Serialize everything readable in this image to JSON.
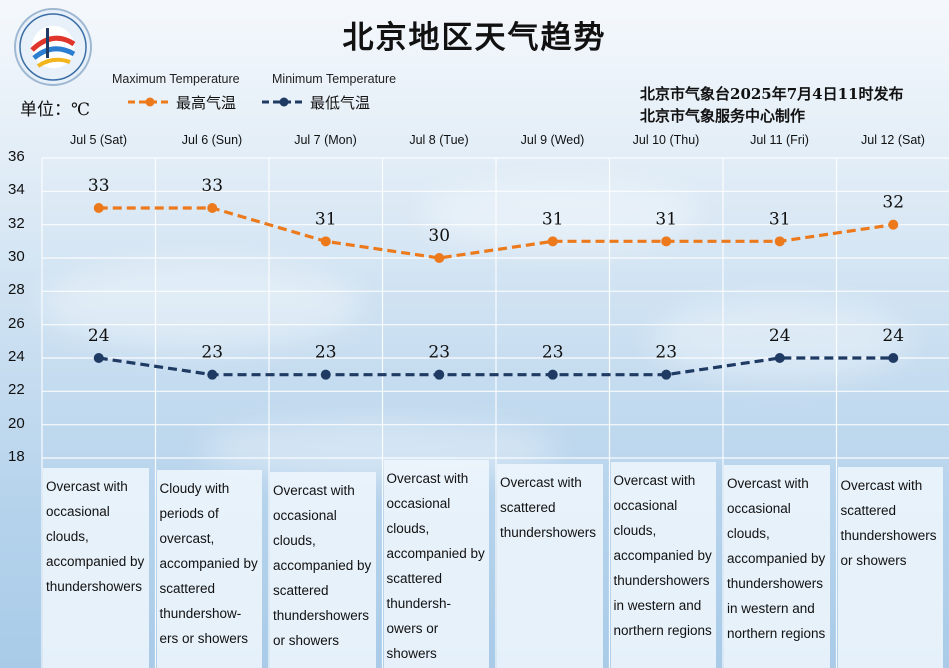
{
  "title": "北京地区天气趋势",
  "unit_label": "单位：℃",
  "legend": {
    "max_en": "Maximum  Temperature",
    "min_en": "Minimum Temperature",
    "max_cn": "最高气温",
    "min_cn": "最低气温"
  },
  "issuer": {
    "line1": "北京市气象台2025年7月4日11时发布",
    "line2": "北京市气象服务中心制作"
  },
  "colors": {
    "max_series": "#ec7a1c",
    "min_series": "#1f3b64",
    "grid": "#ffffff"
  },
  "logo_icon": "meteorological-service-logo-icon",
  "days": [
    {
      "date": "Jul 5 (Sat)",
      "desc": "Overcast with occasional clouds, accompanied by thundershowers"
    },
    {
      "date": "Jul 6 (Sun)",
      "desc": "Cloudy with periods of overcast, accompanied by scattered thundershow- ers or showers"
    },
    {
      "date": "Jul 7 (Mon)",
      "desc": "Overcast with occasional clouds, accompanied by scattered thundershowers or showers"
    },
    {
      "date": "Jul 8 (Tue)",
      "desc": "Overcast with occasional clouds, accompanied by scattered thundersh- owers or showers"
    },
    {
      "date": "Jul 9 (Wed)",
      "desc": "Overcast with scattered thundershowers"
    },
    {
      "date": "Jul 10 (Thu)",
      "desc": "Overcast with occasional clouds, accompanied by thundershowers in western and northern regions"
    },
    {
      "date": "Jul 11 (Fri)",
      "desc": "Overcast with occasional clouds, accompanied by thundershowers in western and northern regions"
    },
    {
      "date": "Jul 12 (Sat)",
      "desc": "Overcast with scattered thundershowers or showers"
    }
  ],
  "chart_data": {
    "type": "line",
    "title": "北京地区天气趋势",
    "ylabel": "单位：℃",
    "categories": [
      "Jul 5 (Sat)",
      "Jul 6 (Sun)",
      "Jul 7 (Mon)",
      "Jul 8 (Tue)",
      "Jul 9 (Wed)",
      "Jul 10 (Thu)",
      "Jul 11 (Fri)",
      "Jul 12 (Sat)"
    ],
    "ylim": [
      18,
      36
    ],
    "yticks": [
      18,
      20,
      22,
      24,
      26,
      28,
      30,
      32,
      34,
      36
    ],
    "grid": true,
    "legend_position": "top-left",
    "series": [
      {
        "name": "最高气温",
        "values": [
          33,
          33,
          31,
          30,
          31,
          31,
          31,
          32
        ]
      },
      {
        "name": "最低气温",
        "values": [
          24,
          23,
          23,
          23,
          23,
          23,
          24,
          24
        ]
      }
    ]
  }
}
